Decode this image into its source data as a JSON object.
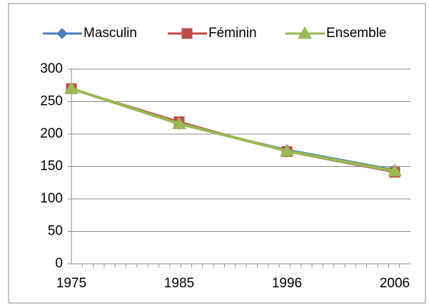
{
  "chart_data": {
    "type": "line",
    "categories": [
      "1975",
      "1985",
      "1996",
      "2006"
    ],
    "series": [
      {
        "name": "Masculin",
        "color": "#4a7ebb",
        "marker": "diamond",
        "values": [
          270,
          215,
          176,
          145
        ]
      },
      {
        "name": "Féminin",
        "color": "#be4b48",
        "marker": "square",
        "values": [
          270,
          219,
          173,
          141
        ]
      },
      {
        "name": "Ensemble",
        "color": "#98b954",
        "marker": "triangle",
        "values": [
          270,
          216,
          174,
          143
        ]
      }
    ],
    "ylim": [
      0,
      300
    ],
    "yticks": [
      0,
      50,
      100,
      150,
      200,
      250,
      300
    ],
    "grid": true,
    "legend": "top"
  }
}
